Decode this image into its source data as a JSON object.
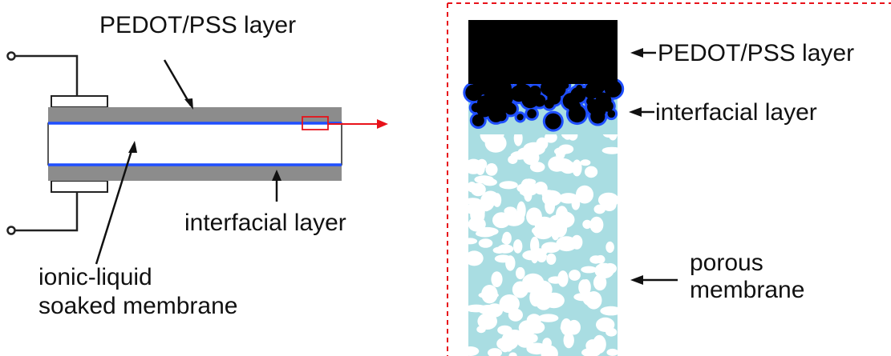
{
  "left_diagram": {
    "labels": {
      "top_layer": "PEDOT/PSS layer",
      "bottom_layer": "interfacial layer",
      "membrane_line1": "ionic-liquid",
      "membrane_line2": "soaked membrane"
    }
  },
  "right_diagram": {
    "labels": {
      "top_layer": "PEDOT/PSS layer",
      "middle_layer": "interfacial layer",
      "porous_line1": "porous",
      "porous_line2": "membrane"
    }
  },
  "colors": {
    "pedot_gray": "#8c8c8c",
    "interfacial_blue": "#1f4fff",
    "pedot_black": "#000000",
    "porous_cyan": "#a9dde2",
    "zoom_marker_red": "#e8121a"
  }
}
